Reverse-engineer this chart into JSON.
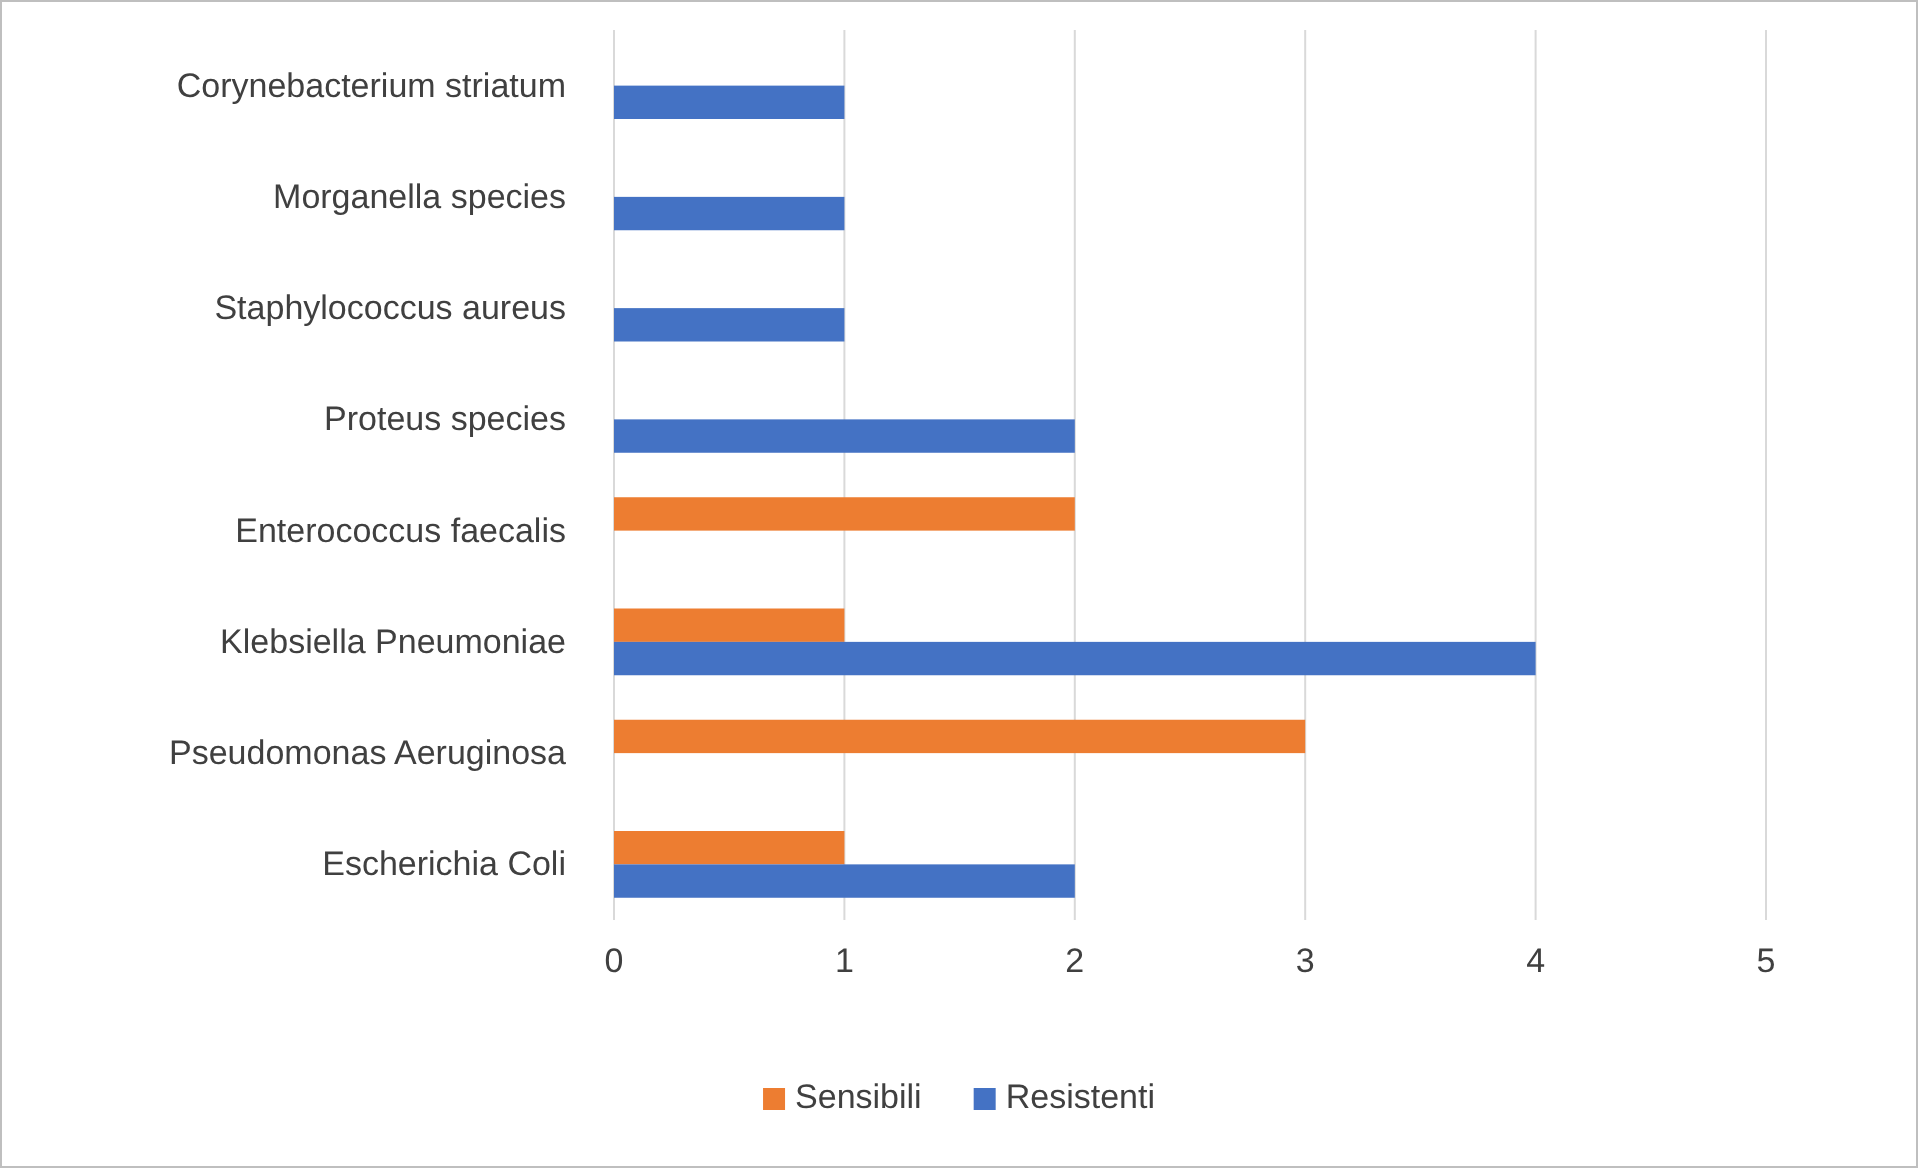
{
  "chart_data": {
    "type": "bar",
    "orientation": "horizontal",
    "categories": [
      "Corynebacterium striatum",
      "Morganella species",
      "Staphylococcus aureus",
      "Proteus species",
      "Enterococcus faecalis",
      "Klebsiella Pneumoniae",
      "Pseudomonas Aeruginosa",
      "Escherichia Coli"
    ],
    "series": [
      {
        "name": "Sensibili",
        "color": "#ed7d31",
        "values": [
          0,
          0,
          0,
          0,
          2,
          1,
          3,
          1
        ]
      },
      {
        "name": "Resistenti",
        "color": "#4472c4",
        "values": [
          1,
          1,
          1,
          2,
          0,
          4,
          0,
          2
        ]
      }
    ],
    "xlim": [
      0,
      5
    ],
    "xticks": [
      0,
      1,
      2,
      3,
      4,
      5
    ],
    "grid": "x",
    "legend": "bottom"
  }
}
